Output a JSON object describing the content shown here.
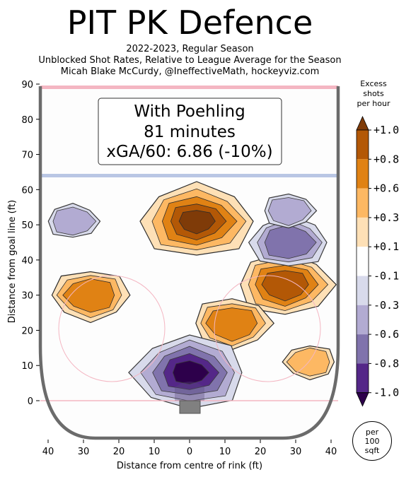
{
  "chart_data": {
    "type": "heatmap",
    "title": "PIT PK Defence",
    "subtitle": [
      "2022-2023, Regular Season",
      "Unblocked Shot Rates, Relative to League Average for the Season",
      "Micah Blake McCurdy, @IneffectiveMath, hockeyviz.com"
    ],
    "xlabel": "Distance from centre of rink (ft)",
    "ylabel": "Distance from goal line (ft)",
    "xlim": [
      -40,
      40
    ],
    "ylim": [
      0,
      90
    ],
    "x_ticks": [
      "40",
      "30",
      "20",
      "10",
      "0",
      "10",
      "20",
      "30",
      "40"
    ],
    "y_ticks": [
      "0",
      "10",
      "20",
      "30",
      "40",
      "50",
      "60",
      "70",
      "80",
      "90"
    ],
    "annotation": [
      "With Poehling",
      "81 minutes",
      "xGA/60: 6.86 (-10%)"
    ],
    "colorbar": {
      "title": [
        "Excess",
        "shots",
        "per hour"
      ],
      "levels": [
        "+1.0",
        "+0.8",
        "+0.6",
        "+0.3",
        "+0.1",
        "-0.1",
        "-0.3",
        "-0.6",
        "-0.8",
        "-1.0"
      ],
      "colors": [
        "#7f3b08",
        "#b35806",
        "#e08214",
        "#fdb863",
        "#fee0b6",
        "#ffffff",
        "#d8daeb",
        "#b2abd2",
        "#8073ac",
        "#542788",
        "#2d004b"
      ],
      "unit": [
        "per",
        "100",
        "sqft"
      ]
    },
    "regions": [
      {
        "sign": "+",
        "level": 1.0,
        "x": 2,
        "y": 51
      },
      {
        "sign": "+",
        "level": 0.8,
        "x": 27,
        "y": 33
      },
      {
        "sign": "+",
        "level": 0.6,
        "x": 12,
        "y": 22
      },
      {
        "sign": "+",
        "level": 0.6,
        "x": -28,
        "y": 30
      },
      {
        "sign": "+",
        "level": 0.3,
        "x": 34,
        "y": 11
      },
      {
        "sign": "-",
        "level": 1.0,
        "x": 0,
        "y": 8
      },
      {
        "sign": "-",
        "level": 0.6,
        "x": 28,
        "y": 45
      },
      {
        "sign": "-",
        "level": 0.3,
        "x": -33,
        "y": 51
      },
      {
        "sign": "-",
        "level": 0.3,
        "x": 28,
        "y": 54
      }
    ]
  }
}
